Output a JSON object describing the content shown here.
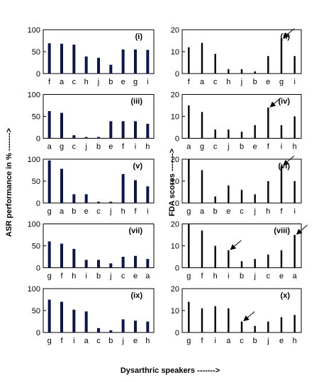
{
  "figure": {
    "left_ylabel": "ASR performance in % ------->",
    "right_ylabel": "FDA scores ------->",
    "xlabel": "Dysarthric speakers ------->"
  },
  "chart_data": [
    {
      "type": "bar",
      "side": "left",
      "label": "(i)",
      "ylim": [
        0,
        100
      ],
      "yticks": [
        0,
        50,
        100
      ],
      "categories": [
        "f",
        "a",
        "c",
        "h",
        "j",
        "b",
        "e",
        "g",
        "i"
      ],
      "values": [
        69,
        68,
        66,
        39,
        36,
        20,
        55,
        55,
        54
      ],
      "arrows": [],
      "color": "#0b1650"
    },
    {
      "type": "bar",
      "side": "right",
      "label": "(ii)",
      "ylim": [
        0,
        20
      ],
      "yticks": [
        0,
        10,
        20
      ],
      "categories": [
        "f",
        "a",
        "c",
        "h",
        "j",
        "b",
        "e",
        "g",
        "i"
      ],
      "values": [
        12,
        14,
        9,
        2,
        2,
        1,
        8,
        16,
        8
      ],
      "arrows": [
        7
      ],
      "color": "#000000"
    },
    {
      "type": "bar",
      "side": "left",
      "label": "(iii)",
      "ylim": [
        0,
        100
      ],
      "yticks": [
        0,
        50,
        100
      ],
      "categories": [
        "a",
        "g",
        "c",
        "j",
        "b",
        "e",
        "f",
        "i",
        "h"
      ],
      "values": [
        62,
        58,
        7,
        3,
        3,
        39,
        39,
        39,
        33
      ],
      "arrows": [],
      "color": "#0b1650"
    },
    {
      "type": "bar",
      "side": "right",
      "label": "(iv)",
      "ylim": [
        0,
        20
      ],
      "yticks": [
        0,
        10,
        20
      ],
      "categories": [
        "a",
        "g",
        "c",
        "j",
        "b",
        "e",
        "f",
        "i",
        "h"
      ],
      "values": [
        15,
        12,
        4,
        4,
        3,
        6,
        14,
        6,
        10
      ],
      "arrows": [
        6
      ],
      "color": "#000000"
    },
    {
      "type": "bar",
      "side": "left",
      "label": "(v)",
      "ylim": [
        0,
        100
      ],
      "yticks": [
        0,
        50,
        100
      ],
      "categories": [
        "g",
        "a",
        "b",
        "e",
        "c",
        "j",
        "h",
        "f",
        "i"
      ],
      "values": [
        97,
        78,
        20,
        20,
        3,
        3,
        66,
        52,
        38
      ],
      "arrows": [],
      "color": "#0b1650"
    },
    {
      "type": "bar",
      "side": "right",
      "label": "(vi)",
      "ylim": [
        0,
        20
      ],
      "yticks": [
        0,
        10,
        20
      ],
      "categories": [
        "g",
        "a",
        "b",
        "e",
        "c",
        "j",
        "h",
        "f",
        "i"
      ],
      "values": [
        20,
        15,
        3,
        8,
        6,
        4,
        10,
        17,
        10
      ],
      "arrows": [
        7
      ],
      "color": "#000000"
    },
    {
      "type": "bar",
      "side": "left",
      "label": "(vii)",
      "ylim": [
        0,
        100
      ],
      "yticks": [
        0,
        50,
        100
      ],
      "categories": [
        "g",
        "f",
        "h",
        "i",
        "b",
        "j",
        "c",
        "e",
        "a"
      ],
      "values": [
        60,
        55,
        43,
        18,
        18,
        10,
        25,
        27,
        20
      ],
      "arrows": [],
      "color": "#0b1650"
    },
    {
      "type": "bar",
      "side": "right",
      "label": "(viii)",
      "ylim": [
        0,
        20
      ],
      "yticks": [
        0,
        10,
        20
      ],
      "categories": [
        "g",
        "f",
        "h",
        "i",
        "b",
        "j",
        "c",
        "e",
        "a"
      ],
      "values": [
        20,
        17,
        10,
        8,
        3,
        4,
        6,
        8,
        15
      ],
      "arrows": [
        3,
        8
      ],
      "color": "#000000"
    },
    {
      "type": "bar",
      "side": "left",
      "label": "(ix)",
      "ylim": [
        0,
        100
      ],
      "yticks": [
        0,
        50,
        100
      ],
      "categories": [
        "g",
        "f",
        "i",
        "a",
        "c",
        "b",
        "j",
        "e",
        "h"
      ],
      "values": [
        75,
        70,
        52,
        48,
        10,
        5,
        30,
        27,
        25
      ],
      "arrows": [],
      "color": "#0b1650"
    },
    {
      "type": "bar",
      "side": "right",
      "label": "(x)",
      "ylim": [
        0,
        20
      ],
      "yticks": [
        0,
        10,
        20
      ],
      "categories": [
        "g",
        "f",
        "i",
        "a",
        "c",
        "b",
        "j",
        "e",
        "h"
      ],
      "values": [
        14,
        11,
        12,
        11,
        5,
        3,
        5,
        7,
        8
      ],
      "arrows": [
        4
      ],
      "color": "#000000"
    }
  ]
}
